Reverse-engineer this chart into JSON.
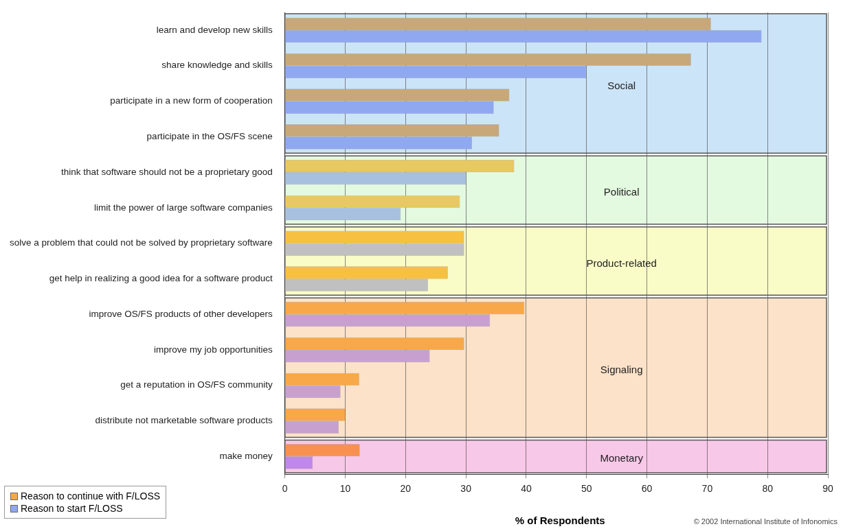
{
  "chart_data": {
    "type": "bar",
    "orientation": "horizontal",
    "categories": [
      "learn and develop new skills",
      "share knowledge and skills",
      "participate in a new form of cooperation",
      "participate in the OS/FS scene",
      "think that software should not be a proprietary good",
      "limit the power of large software companies",
      "solve a problem that could not be solved by proprietary software",
      "get help in realizing a good idea for a software product",
      "improve OS/FS products of other developers",
      "improve my job opportunities",
      "get a reputation in OS/FS community",
      "distribute not marketable software products",
      "make money"
    ],
    "series": [
      {
        "name": "Reason to continue with F/LOSS",
        "color": "#f8a848",
        "colors": [
          "#c8a878",
          "#c8a878",
          "#c8a878",
          "#c8a878",
          "#e8c860",
          "#e8c860",
          "#f8c040",
          "#f8c040",
          "#f8a848",
          "#f8a848",
          "#f8a848",
          "#f8a848",
          "#f89050"
        ],
        "values": [
          70.6,
          67.3,
          37.2,
          35.5,
          38,
          29,
          29.7,
          27,
          39.7,
          29.7,
          12.3,
          10,
          12.4
        ]
      },
      {
        "name": "Reason to start F/LOSS",
        "color": "#90a8f0",
        "colors": [
          "#90a8f0",
          "#90a8f0",
          "#90a8f0",
          "#90a8f0",
          "#a8c0e0",
          "#a8c0e0",
          "#c0c0c0",
          "#c0c0c0",
          "#c8a0d0",
          "#c8a0d0",
          "#c8a0d0",
          "#c8a0d0",
          "#c088e8"
        ],
        "values": [
          79,
          49.9,
          34.6,
          31,
          30,
          19.2,
          29.7,
          23.7,
          34,
          24,
          9.2,
          8.9,
          4.6
        ]
      }
    ],
    "bands": [
      {
        "axis": "y",
        "from": "learn and develop new skills",
        "to": "participate in the OS/FS scene",
        "label": "Social",
        "color": "#cce4f8"
      },
      {
        "axis": "y",
        "from": "think that software should not be a proprietary good",
        "to": "limit the power of large software companies",
        "label": "Political",
        "color": "#e4fae0"
      },
      {
        "axis": "y",
        "from": "solve a problem that could not be solved by proprietary software",
        "to": "get help in realizing a good idea for a software product",
        "label": "Product-related",
        "color": "#fafcc8"
      },
      {
        "axis": "y",
        "from": "improve OS/FS products of other developers",
        "to": "distribute not marketable software products",
        "label": "Signaling",
        "color": "#fce2c8"
      },
      {
        "axis": "y",
        "from": "make money",
        "to": "make money",
        "label": "Monetary",
        "color": "#f8c8e8"
      }
    ],
    "xlabel": "% of Respondents",
    "xlim": [
      0,
      90
    ],
    "xticks": [
      0,
      10,
      20,
      30,
      40,
      50,
      60,
      70,
      80,
      90
    ],
    "grid": "x",
    "legend": "bottom left",
    "annotations": [
      "© 2002 International Institute of Infonomics"
    ]
  }
}
